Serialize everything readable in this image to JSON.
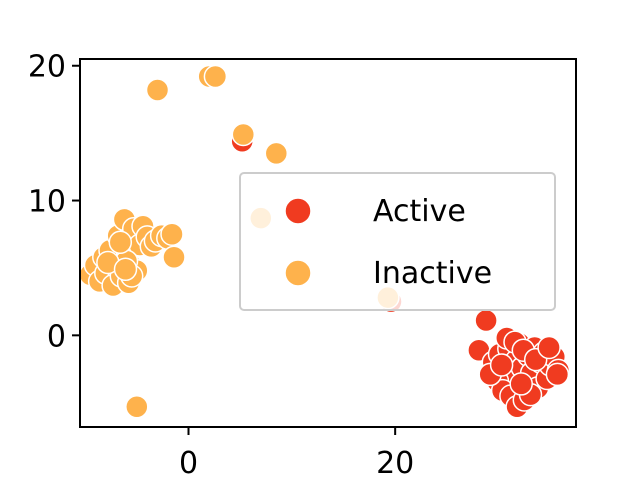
{
  "chart_data": {
    "type": "scatter",
    "title": "",
    "xlabel": "",
    "ylabel": "",
    "xlim": [
      -10.5,
      37.5
    ],
    "ylim": [
      -6.8,
      20.5
    ],
    "xticks": [
      0,
      20
    ],
    "xtick_labels": [
      "0",
      "20"
    ],
    "yticks": [
      0,
      10,
      20
    ],
    "ytick_labels": [
      "0",
      "10",
      "20"
    ],
    "grid": false,
    "legend": {
      "placement": "center-right"
    },
    "series": [
      {
        "name": "Active",
        "color": "#f03b20",
        "points": [
          [
            5.2,
            14.4
          ],
          [
            19.6,
            2.5
          ],
          [
            28.8,
            1.1
          ],
          [
            28.1,
            -1.1
          ],
          [
            29.5,
            -2.0
          ],
          [
            30.1,
            -1.4
          ],
          [
            30.6,
            -2.6
          ],
          [
            31.0,
            -1.0
          ],
          [
            31.4,
            -3.1
          ],
          [
            31.7,
            -1.9
          ],
          [
            32.0,
            -0.6
          ],
          [
            32.3,
            -2.4
          ],
          [
            32.6,
            -3.6
          ],
          [
            32.9,
            -1.5
          ],
          [
            33.2,
            -2.8
          ],
          [
            33.5,
            -0.9
          ],
          [
            33.8,
            -3.9
          ],
          [
            34.1,
            -2.0
          ],
          [
            34.4,
            -1.3
          ],
          [
            34.7,
            -3.2
          ],
          [
            35.0,
            -2.2
          ],
          [
            35.4,
            -1.6
          ],
          [
            35.8,
            -2.6
          ],
          [
            29.9,
            -3.4
          ],
          [
            30.4,
            -4.1
          ],
          [
            31.2,
            -4.5
          ],
          [
            31.8,
            -5.3
          ],
          [
            32.5,
            -4.8
          ],
          [
            33.1,
            -4.4
          ],
          [
            30.8,
            -0.2
          ],
          [
            31.6,
            -0.5
          ],
          [
            32.4,
            -1.1
          ],
          [
            33.6,
            -1.8
          ],
          [
            29.2,
            -2.9
          ],
          [
            34.9,
            -0.9
          ],
          [
            32.2,
            -3.6
          ],
          [
            35.7,
            -2.9
          ],
          [
            30.3,
            -2.2
          ]
        ]
      },
      {
        "name": "Inactive",
        "color": "#feb24c",
        "points": [
          [
            2.0,
            19.2
          ],
          [
            2.6,
            19.2
          ],
          [
            -3.0,
            18.2
          ],
          [
            5.3,
            14.9
          ],
          [
            8.5,
            13.5
          ],
          [
            7.0,
            8.7
          ],
          [
            19.3,
            2.8
          ],
          [
            -5.0,
            -5.3
          ],
          [
            -9.5,
            4.5
          ],
          [
            -9.0,
            5.2
          ],
          [
            -8.6,
            4.0
          ],
          [
            -8.2,
            5.8
          ],
          [
            -8.0,
            4.6
          ],
          [
            -7.6,
            6.3
          ],
          [
            -7.3,
            3.7
          ],
          [
            -7.0,
            5.1
          ],
          [
            -6.8,
            7.4
          ],
          [
            -6.5,
            4.4
          ],
          [
            -6.2,
            8.6
          ],
          [
            -5.9,
            6.0
          ],
          [
            -5.6,
            5.2
          ],
          [
            -5.3,
            7.9
          ],
          [
            -5.0,
            4.8
          ],
          [
            -4.7,
            6.7
          ],
          [
            -4.4,
            8.1
          ],
          [
            -4.0,
            7.3
          ],
          [
            -3.6,
            6.6
          ],
          [
            -3.2,
            7.0
          ],
          [
            -2.6,
            7.4
          ],
          [
            -2.0,
            7.2
          ],
          [
            -1.6,
            7.5
          ],
          [
            -1.4,
            5.8
          ],
          [
            -6.0,
            5.5
          ],
          [
            -5.8,
            3.9
          ],
          [
            -6.6,
            6.9
          ],
          [
            -7.8,
            5.4
          ],
          [
            -5.5,
            4.4
          ],
          [
            -6.1,
            4.9
          ]
        ]
      }
    ]
  }
}
